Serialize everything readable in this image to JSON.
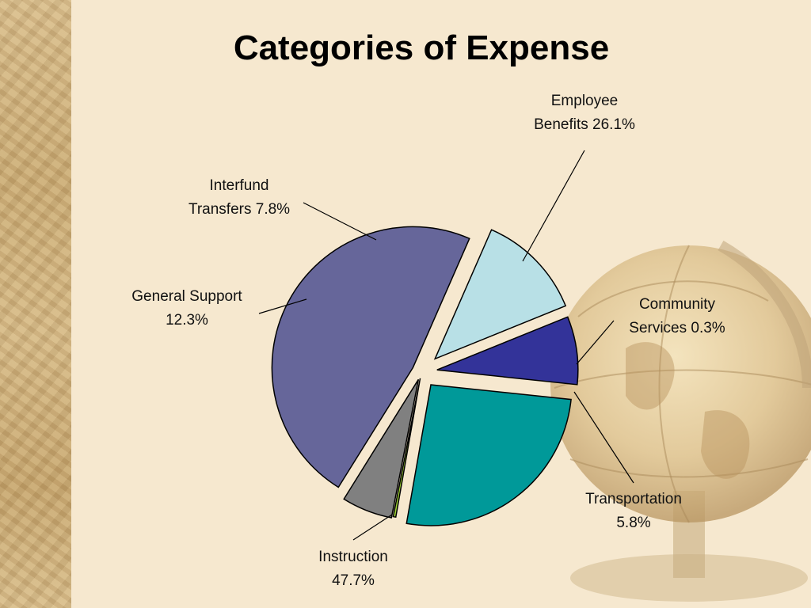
{
  "chart_data": {
    "type": "pie",
    "title": "Categories of Expense",
    "slices": [
      {
        "name": "Employee Benefits",
        "value": 26.1,
        "color": "#009999",
        "label_lines": [
          "Employee",
          "Benefits 26.1%"
        ]
      },
      {
        "name": "Community Services",
        "value": 0.3,
        "color": "#99cc33",
        "label_lines": [
          "Community",
          "Services 0.3%"
        ]
      },
      {
        "name": "Transportation",
        "value": 5.8,
        "color": "#808080",
        "label_lines": [
          "Transportation",
          "5.8%"
        ]
      },
      {
        "name": "Instruction",
        "value": 47.7,
        "color": "#66669a",
        "label_lines": [
          "Instruction",
          "47.7%"
        ]
      },
      {
        "name": "General Support",
        "value": 12.3,
        "color": "#b8e0e6",
        "label_lines": [
          "General Support",
          "12.3%"
        ]
      },
      {
        "name": "Interfund Transfers",
        "value": 7.8,
        "color": "#333399",
        "label_lines": [
          "Interfund",
          "Transfers 7.8%"
        ]
      }
    ],
    "legend": "none",
    "exploded": true
  }
}
